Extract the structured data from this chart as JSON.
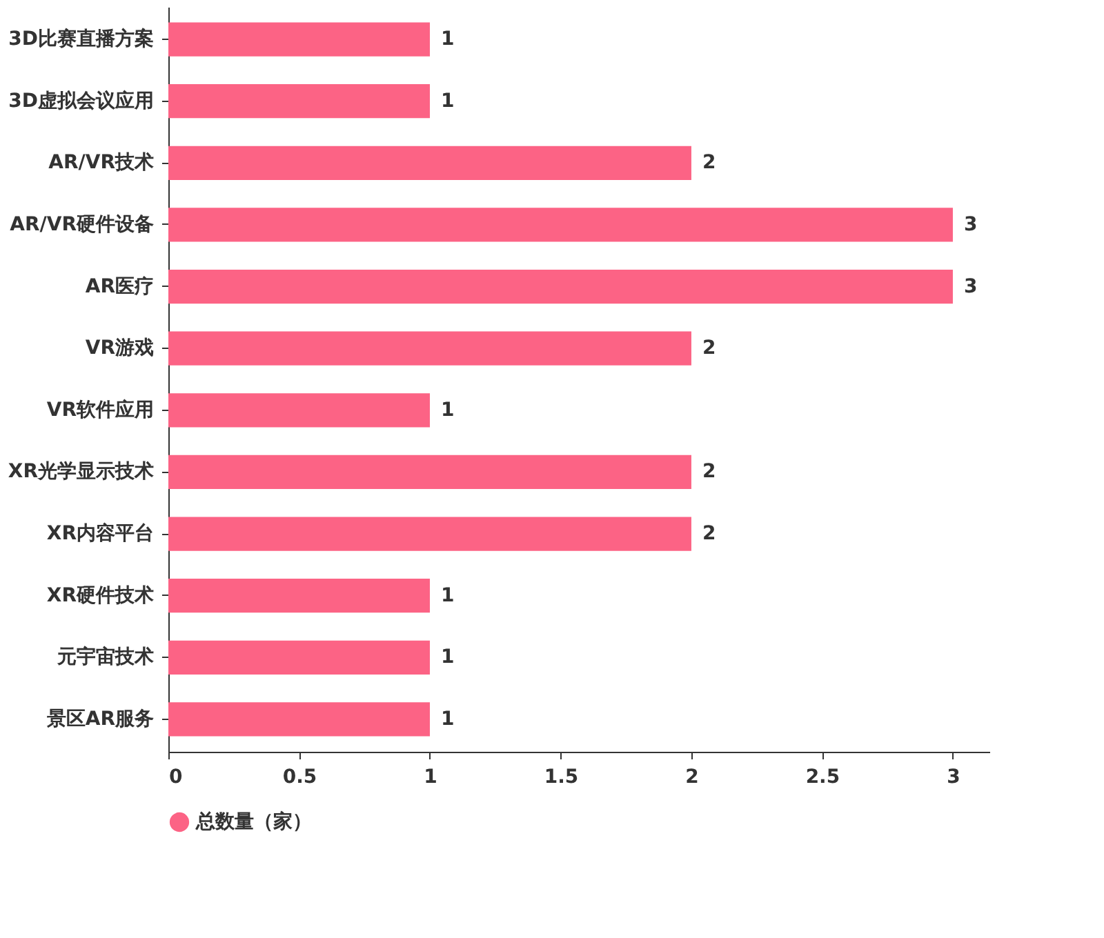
{
  "chart_data": {
    "type": "bar",
    "orientation": "horizontal",
    "categories": [
      "3D比赛直播方案",
      "3D虚拟会议应用",
      "AR/VR技术",
      "AR/VR硬件设备",
      "AR医疗",
      "VR游戏",
      "VR软件应用",
      "XR光学显示技术",
      "XR内容平台",
      "XR硬件技术",
      "元宇宙技术",
      "景区AR服务"
    ],
    "series": [
      {
        "name": "总数量（家）",
        "color": "#fc6385",
        "values": [
          1,
          1,
          2,
          3,
          3,
          2,
          1,
          2,
          2,
          1,
          1,
          1
        ]
      }
    ],
    "xlim": [
      0,
      3.14
    ],
    "xticks": [
      0,
      0.5,
      1,
      1.5,
      2,
      2.5,
      3
    ],
    "data_labels": true,
    "grid": false,
    "legend": "bottom"
  }
}
